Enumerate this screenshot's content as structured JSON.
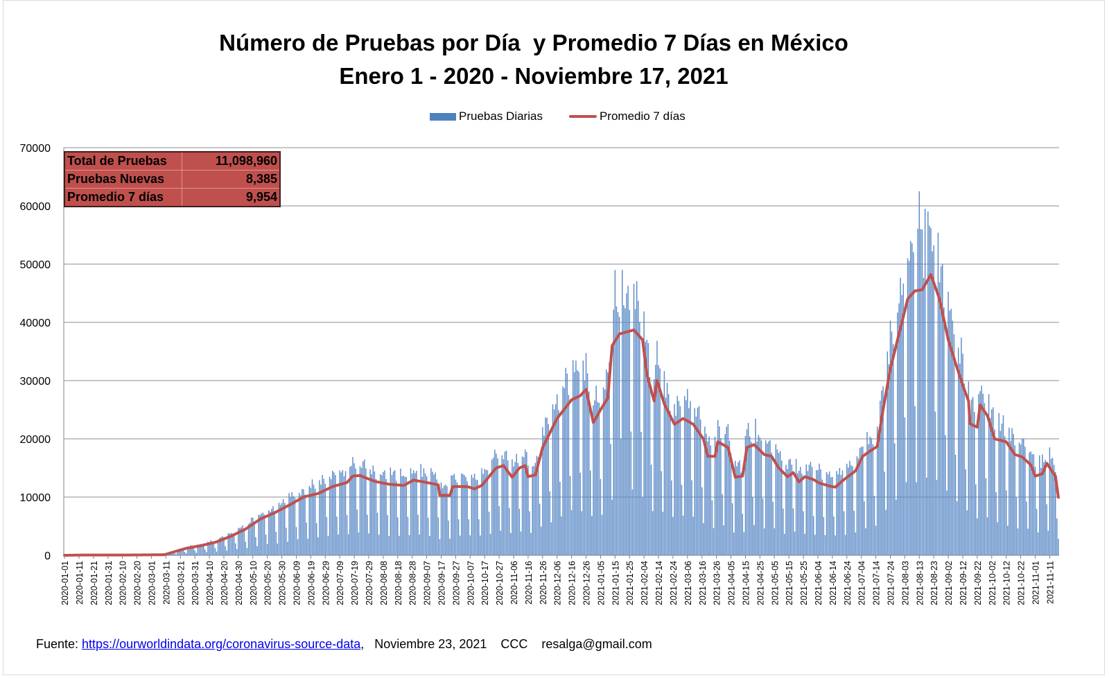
{
  "chart_data": {
    "type": "bar",
    "title": [
      "Número de Pruebas por Día  y Promedio 7 Días en México",
      "Enero 1 - 2020 - Noviembre 17, 2021"
    ],
    "legend": [
      {
        "name": "Pruebas Diarias",
        "kind": "bar",
        "color": "#4f81bd"
      },
      {
        "name": "Promedio 7 días",
        "kind": "line",
        "color": "#c0504d"
      }
    ],
    "legend_position": "top-center",
    "ylim": [
      0,
      70000
    ],
    "y_ticks": [
      "0",
      "10000",
      "20000",
      "30000",
      "40000",
      "50000",
      "60000",
      "70000"
    ],
    "grid": true,
    "x_ticks": [
      "2020-01-01",
      "2020-01-11",
      "2020-01-21",
      "2020-01-31",
      "2020-02-10",
      "2020-02-20",
      "2020-03-01",
      "2020-03-11",
      "2020-03-21",
      "2020-03-31",
      "2020-04-10",
      "2020-04-20",
      "2020-04-30",
      "2020-05-10",
      "2020-05-20",
      "2020-05-30",
      "2020-06-09",
      "2020-06-19",
      "2020-06-29",
      "2020-07-09",
      "2020-07-19",
      "2020-07-29",
      "2020-08-08",
      "2020-08-18",
      "2020-08-28",
      "2020-09-07",
      "2020-09-17",
      "2020-09-27",
      "2020-10-07",
      "2020-10-17",
      "2020-10-27",
      "2020-11-06",
      "2020-11-16",
      "2020-11-26",
      "2020-12-06",
      "2020-12-16",
      "2020-12-26",
      "2021-01-05",
      "2021-01-15",
      "2021-01-25",
      "2021-02-04",
      "2021-02-14",
      "2021-02-24",
      "2021-03-06",
      "2021-03-16",
      "2021-03-26",
      "2021-04-05",
      "2021-04-15",
      "2021-04-25",
      "2021-05-05",
      "2021-05-15",
      "2021-05-25",
      "2021-06-04",
      "2021-06-14",
      "2021-06-24",
      "2021-07-04",
      "2021-07-14",
      "2021-07-24",
      "2021-08-03",
      "2021-08-13",
      "2021-08-23",
      "2021-09-02",
      "2021-09-12",
      "2021-09-22",
      "2021-10-02",
      "2021-10-12",
      "2021-10-22",
      "2021-11-01",
      "2021-11-11"
    ],
    "x_start": "2020-01-01",
    "x_end": "2021-11-17",
    "series": [
      {
        "name": "Promedio 7 días",
        "type": "line",
        "points": [
          [
            "2020-01-01",
            0
          ],
          [
            "2020-01-15",
            50
          ],
          [
            "2020-02-15",
            50
          ],
          [
            "2020-03-10",
            100
          ],
          [
            "2020-03-18",
            700
          ],
          [
            "2020-03-25",
            1200
          ],
          [
            "2020-04-05",
            1700
          ],
          [
            "2020-04-15",
            2300
          ],
          [
            "2020-04-25",
            3300
          ],
          [
            "2020-05-05",
            4500
          ],
          [
            "2020-05-15",
            6200
          ],
          [
            "2020-05-25",
            7300
          ],
          [
            "2020-06-04",
            8600
          ],
          [
            "2020-06-14",
            10000
          ],
          [
            "2020-06-24",
            10600
          ],
          [
            "2020-07-04",
            11800
          ],
          [
            "2020-07-14",
            12500
          ],
          [
            "2020-07-18",
            13600
          ],
          [
            "2020-07-23",
            13700
          ],
          [
            "2020-08-02",
            12700
          ],
          [
            "2020-08-12",
            12200
          ],
          [
            "2020-08-22",
            12000
          ],
          [
            "2020-08-29",
            12900
          ],
          [
            "2020-09-05",
            12600
          ],
          [
            "2020-09-15",
            12100
          ],
          [
            "2020-09-16",
            10300
          ],
          [
            "2020-09-23",
            10300
          ],
          [
            "2020-09-25",
            11800
          ],
          [
            "2020-10-05",
            11800
          ],
          [
            "2020-10-10",
            11400
          ],
          [
            "2020-10-15",
            12000
          ],
          [
            "2020-10-25",
            15000
          ],
          [
            "2020-10-30",
            15400
          ],
          [
            "2020-11-05",
            13400
          ],
          [
            "2020-11-10",
            15000
          ],
          [
            "2020-11-14",
            15400
          ],
          [
            "2020-11-16",
            13500
          ],
          [
            "2020-11-21",
            13800
          ],
          [
            "2020-11-26",
            18500
          ],
          [
            "2020-12-06",
            23500
          ],
          [
            "2020-12-16",
            26700
          ],
          [
            "2020-12-22",
            27400
          ],
          [
            "2020-12-26",
            28500
          ],
          [
            "2020-12-31",
            22800
          ],
          [
            "2021-01-05",
            25000
          ],
          [
            "2021-01-10",
            27000
          ],
          [
            "2021-01-13",
            36000
          ],
          [
            "2021-01-18",
            38000
          ],
          [
            "2021-01-28",
            38700
          ],
          [
            "2021-02-03",
            37000
          ],
          [
            "2021-02-06",
            31000
          ],
          [
            "2021-02-11",
            26500
          ],
          [
            "2021-02-13",
            30000
          ],
          [
            "2021-02-18",
            26000
          ],
          [
            "2021-02-25",
            22500
          ],
          [
            "2021-03-03",
            23500
          ],
          [
            "2021-03-10",
            22500
          ],
          [
            "2021-03-17",
            20000
          ],
          [
            "2021-03-20",
            17000
          ],
          [
            "2021-03-25",
            17000
          ],
          [
            "2021-03-27",
            19500
          ],
          [
            "2021-04-03",
            18500
          ],
          [
            "2021-04-08",
            13400
          ],
          [
            "2021-04-13",
            13600
          ],
          [
            "2021-04-16",
            18500
          ],
          [
            "2021-04-21",
            19000
          ],
          [
            "2021-04-28",
            17300
          ],
          [
            "2021-05-03",
            17000
          ],
          [
            "2021-05-08",
            15000
          ],
          [
            "2021-05-14",
            13500
          ],
          [
            "2021-05-18",
            14200
          ],
          [
            "2021-05-22",
            12600
          ],
          [
            "2021-05-26",
            13500
          ],
          [
            "2021-06-01",
            13000
          ],
          [
            "2021-06-05",
            12400
          ],
          [
            "2021-06-12",
            11900
          ],
          [
            "2021-06-16",
            11700
          ],
          [
            "2021-06-21",
            12800
          ],
          [
            "2021-06-30",
            14500
          ],
          [
            "2021-07-05",
            17000
          ],
          [
            "2021-07-10",
            17900
          ],
          [
            "2021-07-15",
            18700
          ],
          [
            "2021-07-19",
            25000
          ],
          [
            "2021-07-24",
            32000
          ],
          [
            "2021-07-30",
            38000
          ],
          [
            "2021-08-05",
            44000
          ],
          [
            "2021-08-10",
            45400
          ],
          [
            "2021-08-15",
            45600
          ],
          [
            "2021-08-21",
            48200
          ],
          [
            "2021-08-27",
            44000
          ],
          [
            "2021-09-02",
            37000
          ],
          [
            "2021-09-07",
            33000
          ],
          [
            "2021-09-13",
            28500
          ],
          [
            "2021-09-16",
            26500
          ],
          [
            "2021-09-17",
            22600
          ],
          [
            "2021-09-22",
            22000
          ],
          [
            "2021-09-24",
            25800
          ],
          [
            "2021-09-29",
            24000
          ],
          [
            "2021-10-04",
            20000
          ],
          [
            "2021-10-12",
            19500
          ],
          [
            "2021-10-18",
            17300
          ],
          [
            "2021-10-23",
            16900
          ],
          [
            "2021-10-29",
            15500
          ],
          [
            "2021-11-01",
            13600
          ],
          [
            "2021-11-06",
            14000
          ],
          [
            "2021-11-09",
            15800
          ],
          [
            "2021-11-13",
            14300
          ],
          [
            "2021-11-15",
            13600
          ],
          [
            "2021-11-17",
            9954
          ]
        ]
      },
      {
        "name": "Pruebas Diarias",
        "type": "bar",
        "note_values": "daily values approximate the 7-day average with weekly low days",
        "peaks": [
          [
            "2021-01-15",
            49000
          ],
          [
            "2021-01-20",
            49000
          ],
          [
            "2021-08-13",
            62500
          ],
          [
            "2021-08-17",
            59500
          ]
        ]
      }
    ]
  },
  "summary": {
    "rows": [
      {
        "label": "Total de Pruebas",
        "value": "11,098,960"
      },
      {
        "label": "Pruebas Nuevas",
        "value": "8,385"
      },
      {
        "label": "Promedio 7 días",
        "value": "9,954"
      }
    ]
  },
  "footer": {
    "prefix": "Fuente: ",
    "link_text": "https://ourworldindata.org/coronavirus-source-data",
    "suffix": ",   Noviembre 23, 2021    CCC    resalga@gmail.com"
  }
}
